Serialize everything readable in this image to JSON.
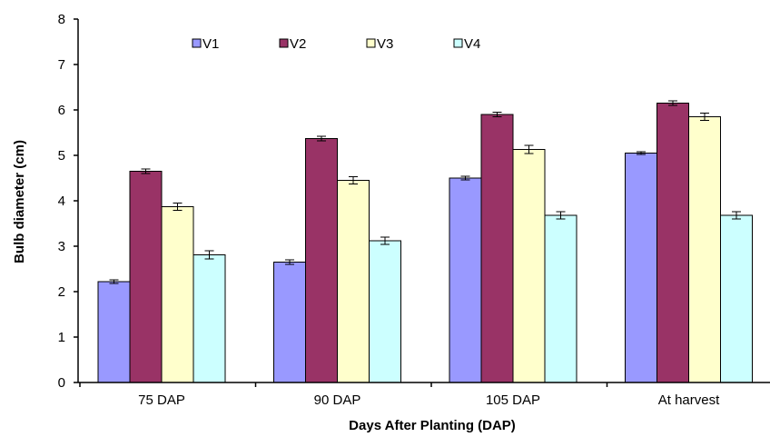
{
  "chart_data": {
    "type": "bar",
    "title": "",
    "xlabel": "Days After Planting (DAP)",
    "ylabel": "Bulb diameter (cm)",
    "categories": [
      "75 DAP",
      "90 DAP",
      "105 DAP",
      "At harvest"
    ],
    "ylim": [
      0,
      8
    ],
    "yticks": [
      "0",
      "1",
      "2",
      "3",
      "4",
      "5",
      "6",
      "7",
      "8"
    ],
    "grid": false,
    "legend_position": "top",
    "series": [
      {
        "name": "V1",
        "color": "#9999ff",
        "values": [
          2.22,
          2.65,
          4.5,
          5.05
        ],
        "errors": [
          0.04,
          0.05,
          0.04,
          0.03
        ]
      },
      {
        "name": "V2",
        "color": "#993366",
        "values": [
          4.65,
          5.37,
          5.9,
          6.15
        ],
        "errors": [
          0.05,
          0.05,
          0.05,
          0.05
        ]
      },
      {
        "name": "V3",
        "color": "#ffffcc",
        "values": [
          3.87,
          4.45,
          5.13,
          5.85
        ],
        "errors": [
          0.08,
          0.08,
          0.09,
          0.08
        ]
      },
      {
        "name": "V4",
        "color": "#ccffff",
        "values": [
          2.81,
          3.12,
          3.68,
          3.68
        ],
        "errors": [
          0.09,
          0.08,
          0.08,
          0.08
        ]
      }
    ]
  }
}
